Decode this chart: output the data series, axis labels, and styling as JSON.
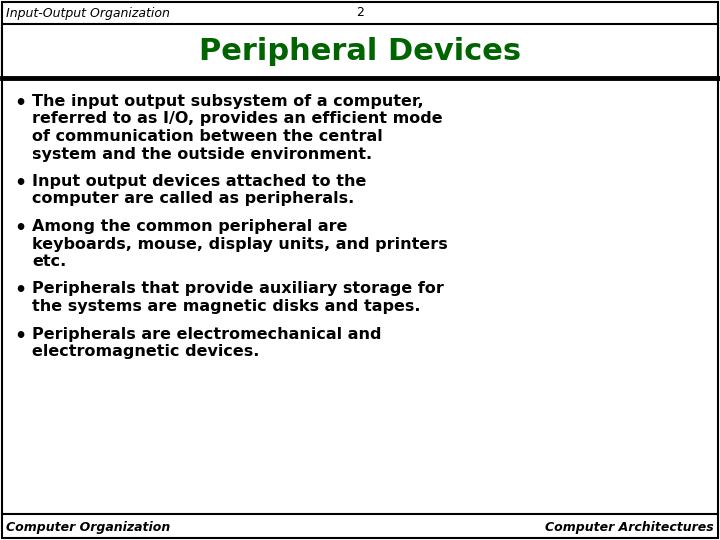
{
  "bg_color": "#ffffff",
  "border_color": "#000000",
  "title": "Peripheral Devices",
  "title_color": "#006400",
  "header_left": "Input-Output Organization",
  "header_center": "2",
  "footer_left": "Computer Organization",
  "footer_right": "Computer Architectures",
  "header_footer_color": "#000000",
  "bullet_color": "#000000",
  "bullet_fontsize": 11.5,
  "title_fontsize": 22,
  "header_fontsize": 9,
  "footer_fontsize": 9,
  "bullet_texts": [
    [
      "The input output subsystem of a computer,",
      "referred to as I/O, provides an efficient mode",
      "of communication between the central",
      "system and the outside environment."
    ],
    [
      "Input output devices attached to the",
      "computer are called as peripherals."
    ],
    [
      "Among the common peripheral are",
      "keyboards, mouse, display units, and printers",
      "etc."
    ],
    [
      "Peripherals that provide auxiliary storage for",
      "the systems are magnetic disks and tapes."
    ],
    [
      "Peripherals are electromechanical and",
      "electromagnetic devices."
    ]
  ]
}
